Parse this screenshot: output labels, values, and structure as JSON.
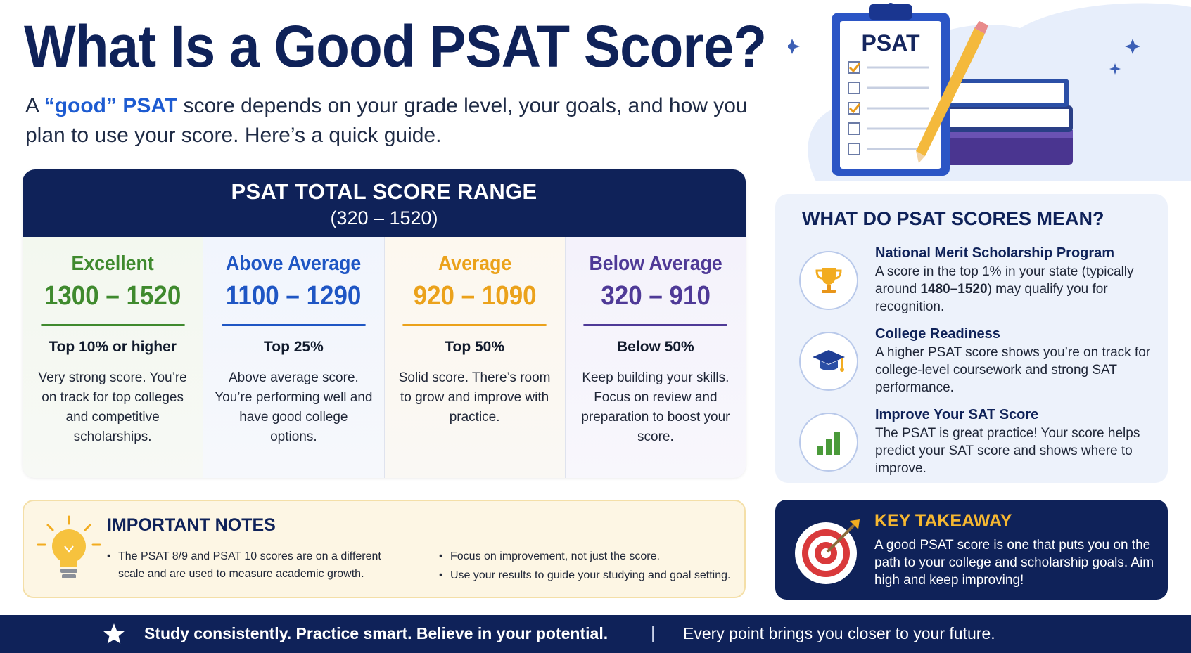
{
  "header": {
    "title": "What Is a Good PSAT Score?",
    "subtitle_pre": "A ",
    "subtitle_hl1": "“good”",
    "subtitle_mid": " ",
    "subtitle_hl2": "PSAT",
    "subtitle_post": " score depends on your grade level, your goals, and how you plan to use your score. Here’s a quick guide."
  },
  "illustration": {
    "clipboard_label": "PSAT"
  },
  "range": {
    "heading": "PSAT TOTAL SCORE RANGE",
    "subheading": "(320 – 1520)",
    "tiers": [
      {
        "level": "Excellent",
        "range": "1300 – 1520",
        "percentile": "Top 10% or higher",
        "desc": "Very strong score. You’re on track for top colleges and competitive scholarships.",
        "color": "#3f8a2e"
      },
      {
        "level": "Above Average",
        "range": "1100 – 1290",
        "percentile": "Top 25%",
        "desc": "Above average score. You’re performing well and have good college options.",
        "color": "#1f56c4"
      },
      {
        "level": "Average",
        "range": "920 – 1090",
        "percentile": "Top 50%",
        "desc": "Solid score. There’s room to grow and improve with practice.",
        "color": "#eba21b"
      },
      {
        "level": "Below Average",
        "range": "320 – 910",
        "percentile": "Below 50%",
        "desc": "Keep building your skills. Focus on review and preparation to boost your score.",
        "color": "#4f3a97"
      }
    ]
  },
  "meaning": {
    "title": "WHAT DO PSAT SCORES MEAN?",
    "items": [
      {
        "title": "National Merit Scholarship Program",
        "desc_pre": "A score in the top 1% in your state (typically around ",
        "desc_bold": "1480–1520",
        "desc_post": ") may qualify you for recognition.",
        "icon": "trophy-icon"
      },
      {
        "title": "College Readiness",
        "desc": "A higher PSAT score shows you’re on track for college-level coursework and strong SAT performance.",
        "icon": "graduation-cap-icon"
      },
      {
        "title": "Improve Your SAT Score",
        "desc": "The PSAT is great practice! Your score helps predict your SAT score and shows where to improve.",
        "icon": "bar-chart-icon"
      }
    ]
  },
  "notes": {
    "title": "IMPORTANT NOTES",
    "left": [
      "The PSAT 8/9 and PSAT 10 scores are on a different scale and are used to measure academic growth."
    ],
    "right": [
      "Focus on improvement, not just the score.",
      "Use your results to guide your studying and goal setting."
    ]
  },
  "takeaway": {
    "title": "KEY TAKEAWAY",
    "text": "A good PSAT score is one that puts you on the path to your college and scholarship goals. Aim high and keep improving!"
  },
  "footer": {
    "left": "Study consistently. Practice smart. Believe in your potential.",
    "separator": "|",
    "right": "Every point brings you closer to your future."
  }
}
